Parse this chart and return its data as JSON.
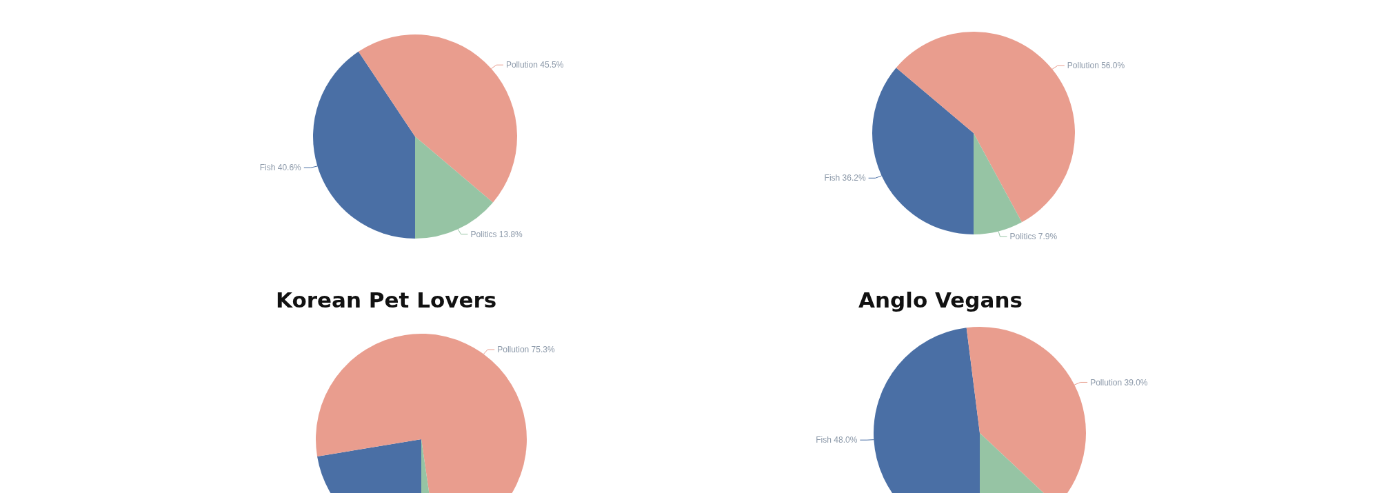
{
  "chart_data": [
    {
      "type": "pie",
      "categories": [
        "Fish",
        "Pollution",
        "Politics"
      ],
      "values": [
        40.6,
        45.5,
        13.8
      ],
      "colors": [
        "#4a6fa5",
        "#e99d8e",
        "#96c4a4"
      ],
      "value_labels": [
        "40.6%",
        "45.5%",
        "13.8%"
      ]
    },
    {
      "type": "pie",
      "categories": [
        "Fish",
        "Pollution",
        "Politics"
      ],
      "values": [
        36.2,
        56.0,
        7.9
      ],
      "colors": [
        "#4a6fa5",
        "#e99d8e",
        "#96c4a4"
      ],
      "value_labels": [
        "36.2%",
        "56.0%",
        "7.9%"
      ]
    },
    {
      "type": "pie",
      "title": "Korean Pet Lovers",
      "categories": [
        null,
        "Pollution",
        null
      ],
      "values": [
        22.4,
        75.3,
        2.3
      ],
      "colors": [
        "#4a6fa5",
        "#e99d8e",
        "#96c4a4"
      ],
      "value_labels": [
        null,
        "75.3%",
        null
      ]
    },
    {
      "type": "pie",
      "title": "Anglo Vegans",
      "categories": [
        "Fish",
        "Pollution",
        null
      ],
      "values": [
        48.0,
        39.0,
        13.0
      ],
      "colors": [
        "#4a6fa5",
        "#e99d8e",
        "#96c4a4"
      ],
      "value_labels": [
        "48.0%",
        "39.0%",
        null
      ]
    }
  ]
}
